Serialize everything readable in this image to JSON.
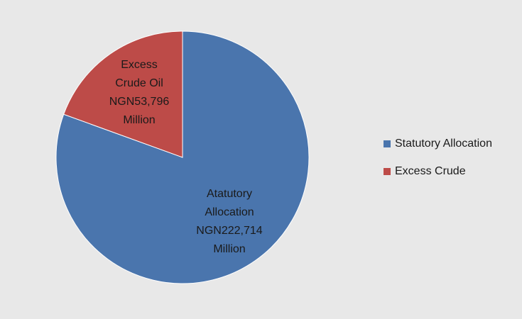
{
  "chart_data": {
    "type": "pie",
    "title": "",
    "slices": [
      {
        "legend": "Statutory Allocation",
        "value": 222714,
        "color": "#4a75ad",
        "label_lines": [
          "Atatutory",
          "Allocation",
          "NGN222,714",
          "Million"
        ]
      },
      {
        "legend": "Excess Crude",
        "value": 53796,
        "color": "#bd4b48",
        "label_lines": [
          "Excess",
          "Crude Oil",
          "NGN53,796",
          "Million"
        ]
      }
    ],
    "legend_position": "right"
  }
}
